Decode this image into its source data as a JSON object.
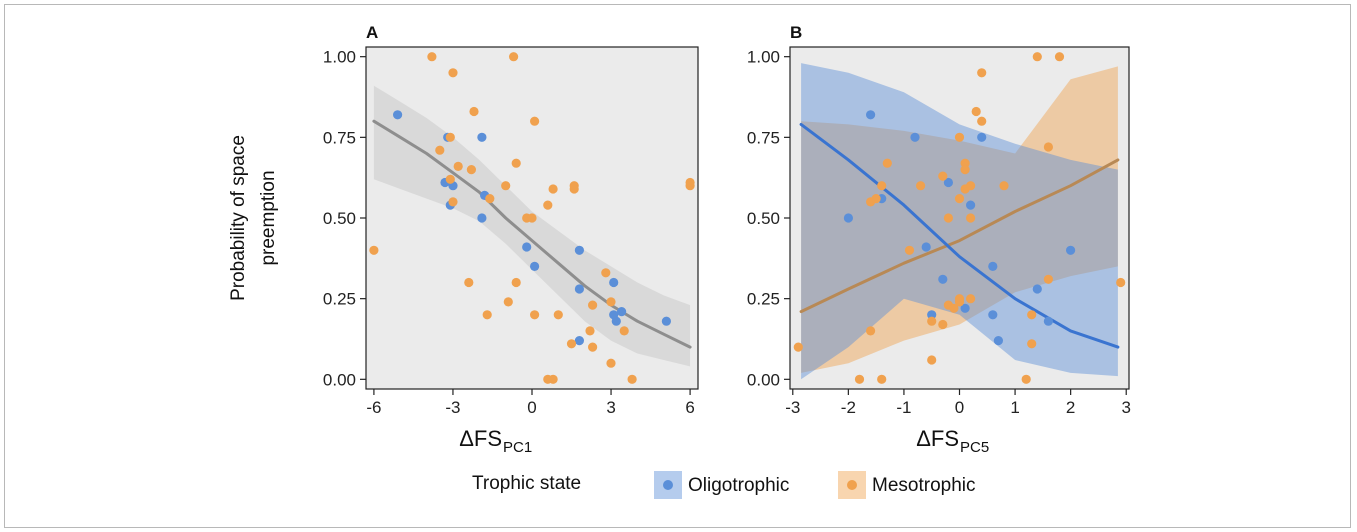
{
  "colors": {
    "oligotrophic": "#5b8fd8",
    "mesotrophic": "#f0a14e",
    "fit_gray": "#8e8e8e",
    "ci_gray": "#d9d9d9",
    "panel_bg": "#ebebeb"
  },
  "y_axis_label_line1": "Probability of space",
  "y_axis_label_line2": "preemption",
  "legend": {
    "title": "Trophic state",
    "items": [
      {
        "label": "Oligotrophic",
        "color_key": "oligotrophic"
      },
      {
        "label": "Mesotrophic",
        "color_key": "mesotrophic"
      }
    ]
  },
  "chart_data": [
    {
      "panel": "A",
      "type": "scatter",
      "xlabel_main": "ΔFS",
      "xlabel_sub": "PC1",
      "ylabel": "Probability of space preemption",
      "xlim": [
        -6.3,
        6.3
      ],
      "ylim": [
        -0.03,
        1.03
      ],
      "xticks": [
        -6,
        -3,
        0,
        3,
        6
      ],
      "xtick_labels": [
        "-6",
        "-3",
        "0",
        "3",
        "6"
      ],
      "yticks": [
        0,
        0.25,
        0.5,
        0.75,
        1
      ],
      "ytick_labels": [
        "0.00",
        "0.25",
        "0.50",
        "0.75",
        "1.00"
      ],
      "grid": false,
      "fit": {
        "x": [
          -6,
          -5,
          -4,
          -3,
          -2,
          -1,
          0,
          1,
          2,
          3,
          4,
          5,
          6
        ],
        "y": [
          0.8,
          0.75,
          0.7,
          0.64,
          0.58,
          0.5,
          0.43,
          0.36,
          0.29,
          0.23,
          0.18,
          0.14,
          0.1
        ],
        "lower": [
          0.62,
          0.59,
          0.56,
          0.53,
          0.49,
          0.42,
          0.34,
          0.26,
          0.18,
          0.12,
          0.08,
          0.06,
          0.04
        ],
        "upper": [
          0.91,
          0.86,
          0.81,
          0.75,
          0.68,
          0.6,
          0.52,
          0.46,
          0.4,
          0.35,
          0.3,
          0.26,
          0.23
        ]
      },
      "series": [
        {
          "group": "oligotrophic",
          "points": [
            [
              -5.1,
              0.82
            ],
            [
              -3.2,
              0.75
            ],
            [
              -3.3,
              0.61
            ],
            [
              -3.0,
              0.6
            ],
            [
              -3.1,
              0.54
            ],
            [
              -1.8,
              0.57
            ],
            [
              -1.9,
              0.5
            ],
            [
              -1.9,
              0.75
            ],
            [
              -0.2,
              0.41
            ],
            [
              0.1,
              0.35
            ],
            [
              1.8,
              0.4
            ],
            [
              1.8,
              0.28
            ],
            [
              1.8,
              0.12
            ],
            [
              3.1,
              0.3
            ],
            [
              3.1,
              0.2
            ],
            [
              3.2,
              0.18
            ],
            [
              3.4,
              0.21
            ],
            [
              5.1,
              0.18
            ]
          ]
        },
        {
          "group": "mesotrophic",
          "points": [
            [
              -6.0,
              0.4
            ],
            [
              -3.8,
              1.0
            ],
            [
              -3.5,
              0.71
            ],
            [
              -3.1,
              0.75
            ],
            [
              -3.0,
              0.95
            ],
            [
              -3.1,
              0.62
            ],
            [
              -3.0,
              0.55
            ],
            [
              -2.8,
              0.66
            ],
            [
              -2.2,
              0.83
            ],
            [
              -2.3,
              0.65
            ],
            [
              -2.4,
              0.3
            ],
            [
              -1.6,
              0.56
            ],
            [
              -1.7,
              0.2
            ],
            [
              -0.7,
              1.0
            ],
            [
              -0.6,
              0.67
            ],
            [
              -1.0,
              0.6
            ],
            [
              -0.9,
              0.24
            ],
            [
              -0.6,
              0.3
            ],
            [
              -0.2,
              0.5
            ],
            [
              0.0,
              0.5
            ],
            [
              0.1,
              0.8
            ],
            [
              0.1,
              0.2
            ],
            [
              0.6,
              0.54
            ],
            [
              0.8,
              0.59
            ],
            [
              1.0,
              0.2
            ],
            [
              0.6,
              0.0
            ],
            [
              0.8,
              0.0
            ],
            [
              1.5,
              0.11
            ],
            [
              1.6,
              0.6
            ],
            [
              1.6,
              0.59
            ],
            [
              2.2,
              0.15
            ],
            [
              2.3,
              0.1
            ],
            [
              2.3,
              0.23
            ],
            [
              2.8,
              0.33
            ],
            [
              3.0,
              0.24
            ],
            [
              3.0,
              0.05
            ],
            [
              3.5,
              0.15
            ],
            [
              3.8,
              0.0
            ],
            [
              6.0,
              0.6
            ],
            [
              6.0,
              0.61
            ]
          ]
        }
      ]
    },
    {
      "panel": "B",
      "type": "scatter",
      "xlabel_main": "ΔFS",
      "xlabel_sub": "PC5",
      "ylabel": "Probability of space preemption",
      "xlim": [
        -3.05,
        3.05
      ],
      "ylim": [
        -0.03,
        1.03
      ],
      "xticks": [
        -3,
        -2,
        -1,
        0,
        1,
        2,
        3
      ],
      "xtick_labels": [
        "-3",
        "-2",
        "-1",
        "0",
        "1",
        "2",
        "3"
      ],
      "yticks": [
        0,
        0.25,
        0.5,
        0.75,
        1
      ],
      "ytick_labels": [
        "0.00",
        "0.25",
        "0.50",
        "0.75",
        "1.00"
      ],
      "grid": false,
      "fits": [
        {
          "group": "oligotrophic",
          "x": [
            -2.85,
            -2,
            -1,
            0,
            1,
            2,
            2.85
          ],
          "y": [
            0.79,
            0.68,
            0.54,
            0.38,
            0.25,
            0.15,
            0.1
          ],
          "lower": [
            0.0,
            0.1,
            0.25,
            0.2,
            0.06,
            0.02,
            0.01
          ],
          "upper": [
            0.98,
            0.95,
            0.89,
            0.79,
            0.73,
            0.68,
            0.65
          ]
        },
        {
          "group": "mesotrophic",
          "x": [
            -2.85,
            -2,
            -1,
            0,
            1,
            2,
            2.85
          ],
          "y": [
            0.21,
            0.28,
            0.36,
            0.43,
            0.52,
            0.6,
            0.68
          ],
          "lower": [
            0.02,
            0.05,
            0.12,
            0.17,
            0.27,
            0.32,
            0.35
          ],
          "upper": [
            0.8,
            0.79,
            0.77,
            0.74,
            0.7,
            0.93,
            0.97
          ]
        }
      ],
      "series": [
        {
          "group": "oligotrophic",
          "points": [
            [
              -2.0,
              0.5
            ],
            [
              -1.6,
              0.82
            ],
            [
              -1.4,
              0.56
            ],
            [
              -0.8,
              0.75
            ],
            [
              -0.6,
              0.41
            ],
            [
              -0.5,
              0.2
            ],
            [
              -0.3,
              0.31
            ],
            [
              -0.2,
              0.61
            ],
            [
              0.1,
              0.22
            ],
            [
              0.2,
              0.54
            ],
            [
              0.4,
              0.75
            ],
            [
              0.6,
              0.35
            ],
            [
              0.6,
              0.2
            ],
            [
              0.7,
              0.12
            ],
            [
              1.4,
              0.28
            ],
            [
              1.6,
              0.18
            ],
            [
              2.0,
              0.4
            ]
          ]
        },
        {
          "group": "mesotrophic",
          "points": [
            [
              -2.9,
              0.1
            ],
            [
              -1.8,
              0.0
            ],
            [
              -1.6,
              0.55
            ],
            [
              -1.6,
              0.15
            ],
            [
              -1.5,
              0.56
            ],
            [
              -1.4,
              0.6
            ],
            [
              -1.3,
              0.67
            ],
            [
              -1.4,
              0.0
            ],
            [
              -0.9,
              0.4
            ],
            [
              -0.7,
              0.6
            ],
            [
              -0.5,
              0.18
            ],
            [
              -0.5,
              0.06
            ],
            [
              -0.3,
              0.17
            ],
            [
              -0.3,
              0.63
            ],
            [
              -0.2,
              0.5
            ],
            [
              -0.2,
              0.23
            ],
            [
              -0.1,
              0.22
            ],
            [
              0.0,
              0.75
            ],
            [
              0.0,
              0.56
            ],
            [
              0.0,
              0.25
            ],
            [
              0.0,
              0.24
            ],
            [
              0.1,
              0.67
            ],
            [
              0.1,
              0.65
            ],
            [
              0.1,
              0.59
            ],
            [
              0.2,
              0.6
            ],
            [
              0.2,
              0.5
            ],
            [
              0.2,
              0.25
            ],
            [
              0.3,
              0.83
            ],
            [
              0.4,
              0.95
            ],
            [
              0.4,
              0.8
            ],
            [
              0.8,
              0.6
            ],
            [
              1.2,
              0.0
            ],
            [
              1.3,
              0.2
            ],
            [
              1.3,
              0.11
            ],
            [
              1.4,
              1.0
            ],
            [
              1.6,
              0.72
            ],
            [
              1.6,
              0.31
            ],
            [
              1.8,
              1.0
            ],
            [
              2.9,
              0.3
            ]
          ]
        }
      ]
    }
  ]
}
